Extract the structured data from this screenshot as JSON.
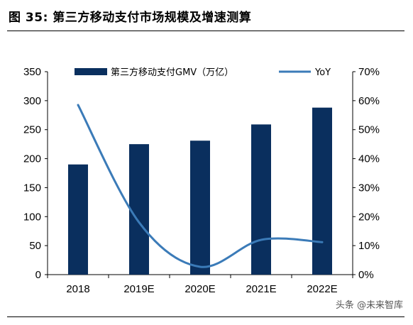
{
  "header": {
    "title": "图 35:  第三方移动支付市场规模及增速测算"
  },
  "chart_data": {
    "type": "bar",
    "categories": [
      "2018",
      "2019E",
      "2020E",
      "2021E",
      "2022E"
    ],
    "series": [
      {
        "name": "第三方移动支付GMV（万亿）",
        "type": "bar",
        "axis": "left",
        "values": [
          190,
          225,
          231,
          259,
          288
        ]
      },
      {
        "name": "YoY",
        "type": "line",
        "axis": "right",
        "values": [
          0.585,
          0.18,
          0.027,
          0.12,
          0.112
        ]
      }
    ],
    "ylim": [
      0,
      350
    ],
    "yticks": [
      "0",
      "50",
      "100",
      "150",
      "200",
      "250",
      "300",
      "350"
    ],
    "y2lim": [
      0,
      0.7
    ],
    "y2ticks": [
      "0%",
      "10%",
      "20%",
      "30%",
      "40%",
      "50%",
      "60%",
      "70%"
    ],
    "legend_position": "top",
    "colors": {
      "bar": "#0a2f5e",
      "line": "#3b7bb8"
    },
    "grid": false
  },
  "watermark": {
    "text": "头条 @未来智库"
  }
}
